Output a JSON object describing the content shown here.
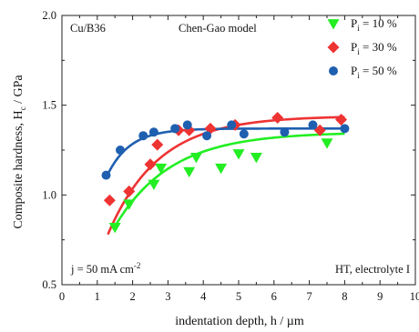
{
  "chart_data": {
    "type": "scatter",
    "title": "Chen-Gao model",
    "xlabel": "indentation depth, h / µm",
    "ylabel": {
      "main": "Composite hardness, H",
      "sub": "c",
      "unit": " / GPa"
    },
    "xlim": [
      0,
      10
    ],
    "ylim": [
      0.5,
      2.0
    ],
    "xticks": [
      0,
      1,
      2,
      3,
      4,
      5,
      6,
      7,
      8,
      9,
      10
    ],
    "yticks": [
      0.5,
      1.0,
      1.5,
      2.0
    ],
    "xtick_labels": [
      "0",
      "1",
      "2",
      "3",
      "4",
      "5",
      "6",
      "7",
      "8",
      "9",
      "10"
    ],
    "ytick_labels": [
      "0.5",
      "1.0",
      "1.5",
      "2.0"
    ],
    "grid": false,
    "legend_position": "top-right",
    "annotations": {
      "top_left": "Cu/B36",
      "bottom_left": {
        "text": "j = 50 mA cm",
        "sup": "-2"
      },
      "bottom_right": "HT, electrolyte I"
    },
    "series": [
      {
        "name": "10 %",
        "label_main": "P",
        "label_sub": "i",
        "label_tail": " = 10 %",
        "marker": "triangle-down",
        "color": "#22ee22",
        "x": [
          1.5,
          1.9,
          2.6,
          2.8,
          3.6,
          3.8,
          4.5,
          5.0,
          5.5,
          7.5
        ],
        "y": [
          0.82,
          0.95,
          1.06,
          1.15,
          1.13,
          1.21,
          1.15,
          1.23,
          1.21,
          1.29
        ],
        "fit": {
          "model": "exponential",
          "y_inf": 1.35,
          "a": 1.35,
          "b": 0.63,
          "x_range": [
            1.45,
            8.0
          ]
        }
      },
      {
        "name": "30 %",
        "label_main": "P",
        "label_sub": "i",
        "label_tail": " = 30 %",
        "marker": "diamond",
        "color": "#ee3333",
        "x": [
          1.35,
          1.9,
          2.5,
          2.7,
          3.3,
          3.6,
          4.2,
          4.9,
          6.1,
          7.3,
          7.9
        ],
        "y": [
          0.97,
          1.02,
          1.17,
          1.28,
          1.36,
          1.36,
          1.37,
          1.39,
          1.43,
          1.36,
          1.42
        ],
        "fit": {
          "model": "exponential",
          "y_inf": 1.44,
          "a": 1.64,
          "b": 0.7,
          "x_range": [
            1.3,
            8.0
          ]
        }
      },
      {
        "name": "50 %",
        "label_main": "P",
        "label_sub": "i",
        "label_tail": " = 50 %",
        "marker": "circle",
        "color": "#1f5fb0",
        "x": [
          1.25,
          1.65,
          2.3,
          2.6,
          3.2,
          3.55,
          4.1,
          4.8,
          5.15,
          6.3,
          7.1,
          8.0
        ],
        "y": [
          1.11,
          1.25,
          1.33,
          1.35,
          1.37,
          1.39,
          1.33,
          1.39,
          1.34,
          1.35,
          1.39,
          1.37
        ],
        "fit": {
          "model": "exponential",
          "y_inf": 1.37,
          "a": 1.9,
          "b": 1.55,
          "x_range": [
            1.25,
            8.0
          ]
        }
      }
    ]
  }
}
